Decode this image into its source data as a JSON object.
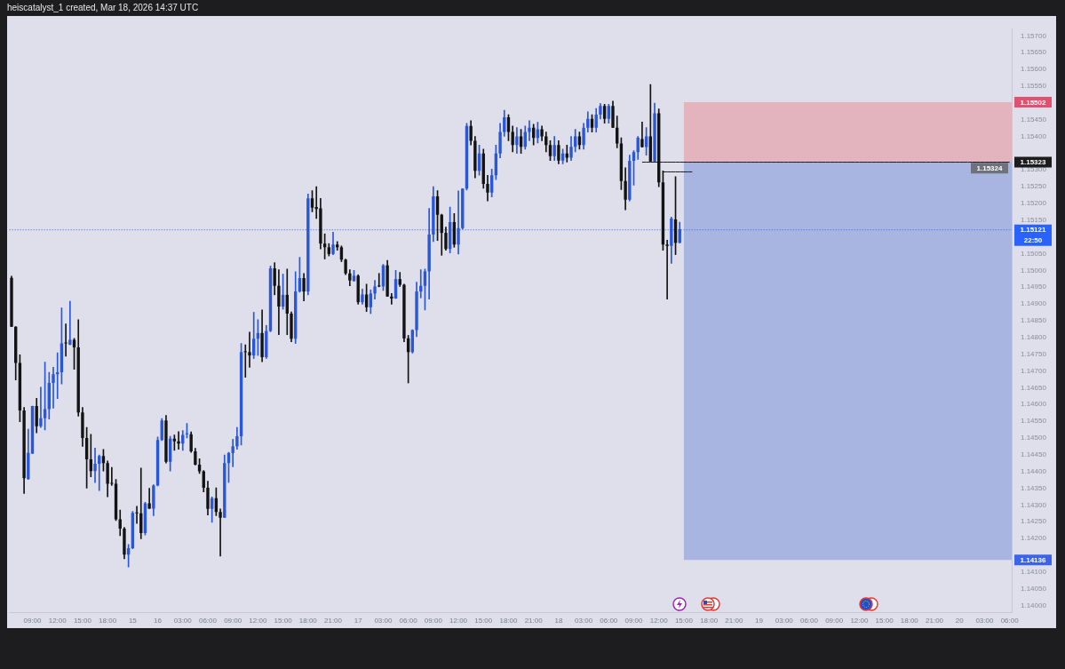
{
  "chart_data": {
    "type": "candlestick",
    "title": "heiscatalyst_1 created, Mar 18, 2026 14:37 UTC",
    "categories": [
      null,
      null,
      null,
      null,
      null,
      "09:00",
      null,
      null,
      null,
      null,
      null,
      "12:00",
      null,
      null,
      null,
      null,
      null,
      "15:00",
      null,
      null,
      null,
      null,
      null,
      "18:00",
      null,
      null,
      null,
      null,
      null,
      "15",
      null,
      null,
      null,
      null,
      null,
      "16",
      null,
      null,
      null,
      null,
      null,
      "03:00",
      null,
      null,
      null,
      null,
      null,
      "06:00",
      null,
      null,
      null,
      null,
      null,
      "09:00",
      null,
      null,
      null,
      null,
      null,
      "12:00",
      null,
      null,
      null,
      null,
      null,
      "15:00",
      null,
      null,
      null,
      null,
      null,
      "18:00",
      null,
      null,
      null,
      null,
      null,
      "21:00",
      null,
      null,
      null,
      null,
      null,
      "17",
      null,
      null,
      null,
      null,
      null,
      "03:00",
      null,
      null,
      null,
      null,
      null,
      "06:00",
      null,
      null,
      null,
      null,
      null,
      "09:00",
      null,
      null,
      null,
      null,
      null,
      "12:00",
      null,
      null,
      null,
      null,
      null,
      "15:00",
      null,
      null,
      null,
      null,
      null,
      "18:00",
      null,
      null,
      null,
      null,
      null,
      "21:00",
      null,
      null,
      null,
      null,
      null,
      "18",
      null,
      null,
      null,
      null,
      null,
      "03:00",
      null,
      null,
      null,
      null,
      null,
      "06:00",
      null,
      null,
      null,
      null,
      null,
      "09:00",
      null,
      null,
      null,
      null,
      null,
      "12:00",
      null,
      null,
      null,
      null,
      null,
      "15:00",
      null,
      null,
      null,
      null,
      null,
      "18:00",
      null,
      null,
      null,
      null,
      null,
      "21:00",
      null,
      null,
      null,
      null,
      null,
      "19",
      null,
      null,
      null,
      null,
      null,
      "03:00",
      null,
      null,
      null,
      null,
      null,
      "06:00",
      null,
      null,
      null,
      null,
      null,
      "09:00",
      null,
      null,
      null,
      null,
      null,
      "12:00",
      null,
      null,
      null,
      null,
      null,
      "15:00",
      null,
      null,
      null,
      null,
      null,
      "18:00",
      null,
      null,
      null,
      null,
      null,
      "21:00",
      null,
      null,
      null,
      null,
      null,
      "20",
      null,
      null,
      null,
      null,
      null,
      "03:00",
      null,
      null,
      null,
      null,
      null,
      "06:00"
    ],
    "ohlc": [
      [
        1.14978,
        1.14983,
        1.14832,
        1.14832
      ],
      [
        1.14832,
        1.14832,
        1.14673,
        1.14724
      ],
      [
        1.14724,
        1.14748,
        1.14548,
        1.14582
      ],
      [
        1.14582,
        1.14591,
        1.14334,
        1.1438
      ],
      [
        1.14377,
        1.14526,
        1.14376,
        1.14455
      ],
      [
        1.14453,
        1.14595,
        1.14453,
        1.14595
      ],
      [
        1.14595,
        1.14618,
        1.14515,
        1.14535
      ],
      [
        1.14535,
        1.14651,
        1.14531,
        1.14559
      ],
      [
        1.14559,
        1.14726,
        1.14524,
        1.14586
      ],
      [
        1.14586,
        1.14696,
        1.14556,
        1.14664
      ],
      [
        1.14664,
        1.14711,
        1.14589,
        1.1469
      ],
      [
        1.1469,
        1.14754,
        1.14617,
        1.14696
      ],
      [
        1.14696,
        1.14888,
        1.14661,
        1.14782
      ],
      [
        1.14782,
        1.1484,
        1.14744,
        1.14782
      ],
      [
        1.14778,
        1.14908,
        1.14778,
        1.14793
      ],
      [
        1.14793,
        1.14797,
        1.14705,
        1.1477
      ],
      [
        1.1477,
        1.14853,
        1.14565,
        1.14576
      ],
      [
        1.14576,
        1.14591,
        1.14475,
        1.145
      ],
      [
        1.145,
        1.14531,
        1.1435,
        1.14436
      ],
      [
        1.14436,
        1.14511,
        1.14384,
        1.14401
      ],
      [
        1.14401,
        1.1447,
        1.14367,
        1.14423
      ],
      [
        1.14423,
        1.14449,
        1.14343,
        1.14446
      ],
      [
        1.14446,
        1.14466,
        1.14401,
        1.14425
      ],
      [
        1.14425,
        1.14431,
        1.14324,
        1.14363
      ],
      [
        1.14363,
        1.14412,
        1.14358,
        1.14363
      ],
      [
        1.14363,
        1.14376,
        1.14253,
        1.14257
      ],
      [
        1.14257,
        1.14285,
        1.14208,
        1.14229
      ],
      [
        1.14229,
        1.14233,
        1.14139,
        1.14152
      ],
      [
        1.14152,
        1.14182,
        1.14115,
        1.14171
      ],
      [
        1.14171,
        1.14281,
        1.14169,
        1.14276
      ],
      [
        1.14275,
        1.14296,
        1.14245,
        1.14275
      ],
      [
        1.14275,
        1.1441,
        1.14199,
        1.14216
      ],
      [
        1.14216,
        1.14308,
        1.1421,
        1.14305
      ],
      [
        1.14305,
        1.1435,
        1.14289,
        1.14289
      ],
      [
        1.14289,
        1.1436,
        1.14268,
        1.14358
      ],
      [
        1.14358,
        1.14503,
        1.14357,
        1.14494
      ],
      [
        1.14494,
        1.14558,
        1.14492,
        1.14552
      ],
      [
        1.14552,
        1.14567,
        1.14425,
        1.14429
      ],
      [
        1.14429,
        1.14505,
        1.14401,
        1.14498
      ],
      [
        1.14498,
        1.14509,
        1.14463,
        1.1449
      ],
      [
        1.1449,
        1.14519,
        1.14466,
        1.14483
      ],
      [
        1.14483,
        1.14522,
        1.14463,
        1.14509
      ],
      [
        1.14511,
        1.14543,
        1.145,
        1.14511
      ],
      [
        1.14511,
        1.14518,
        1.14457,
        1.1446
      ],
      [
        1.1446,
        1.14469,
        1.14419,
        1.1442
      ],
      [
        1.1442,
        1.14438,
        1.14394,
        1.144
      ],
      [
        1.144,
        1.14403,
        1.14339,
        1.14351
      ],
      [
        1.14351,
        1.14371,
        1.1427,
        1.14288
      ],
      [
        1.14288,
        1.14324,
        1.14248,
        1.1432
      ],
      [
        1.1432,
        1.14351,
        1.14268,
        1.14279
      ],
      [
        1.14279,
        1.14288,
        1.14147,
        1.14262
      ],
      [
        1.14262,
        1.14449,
        1.14262,
        1.14425
      ],
      [
        1.14425,
        1.14457,
        1.14367,
        1.14455
      ],
      [
        1.14455,
        1.14496,
        1.14414,
        1.14475
      ],
      [
        1.14475,
        1.14531,
        1.14466,
        1.14505
      ],
      [
        1.14505,
        1.14782,
        1.14479,
        1.14756
      ],
      [
        1.14756,
        1.14778,
        1.14681,
        1.14756
      ],
      [
        1.14756,
        1.14816,
        1.14711,
        1.14746
      ],
      [
        1.14746,
        1.14875,
        1.14737,
        1.14796
      ],
      [
        1.14796,
        1.14853,
        1.14746,
        1.14813
      ],
      [
        1.14813,
        1.14882,
        1.14727,
        1.14741
      ],
      [
        1.14741,
        1.14836,
        1.14737,
        1.14819
      ],
      [
        1.14819,
        1.15013,
        1.14817,
        1.15006
      ],
      [
        1.15006,
        1.15023,
        1.14927,
        1.14954
      ],
      [
        1.14954,
        1.15002,
        1.14808,
        1.14892
      ],
      [
        1.14892,
        1.14989,
        1.14884,
        1.14927
      ],
      [
        1.14927,
        1.15004,
        1.14808,
        1.14871
      ],
      [
        1.14871,
        1.14876,
        1.14787,
        1.14796
      ],
      [
        1.14796,
        1.14996,
        1.14782,
        1.14937
      ],
      [
        1.14937,
        1.15039,
        1.14935,
        1.14977
      ],
      [
        1.14977,
        1.14991,
        1.14909,
        1.14937
      ],
      [
        1.14937,
        1.15228,
        1.14927,
        1.15215
      ],
      [
        1.15215,
        1.15238,
        1.15175,
        1.15187
      ],
      [
        1.15189,
        1.1525,
        1.15155,
        1.15183
      ],
      [
        1.15185,
        1.15215,
        1.15064,
        1.1508
      ],
      [
        1.1508,
        1.15109,
        1.15034,
        1.15069
      ],
      [
        1.15069,
        1.1508,
        1.15043,
        1.15049
      ],
      [
        1.15049,
        1.15114,
        1.15047,
        1.15077
      ],
      [
        1.15077,
        1.15086,
        1.1506,
        1.15069
      ],
      [
        1.15069,
        1.15073,
        1.15026,
        1.15032
      ],
      [
        1.15032,
        1.15034,
        1.14987,
        1.14991
      ],
      [
        1.14991,
        1.15002,
        1.14954,
        1.1497
      ],
      [
        1.14968,
        1.15,
        1.14968,
        1.14984
      ],
      [
        1.14984,
        1.14987,
        1.14899,
        1.14905
      ],
      [
        1.14905,
        1.14944,
        1.14899,
        1.14928
      ],
      [
        1.14928,
        1.14959,
        1.14877,
        1.1489
      ],
      [
        1.1489,
        1.14942,
        1.14871,
        1.14931
      ],
      [
        1.14931,
        1.1497,
        1.14914,
        1.14952
      ],
      [
        1.14952,
        1.14991,
        1.14951,
        1.14952
      ],
      [
        1.14952,
        1.15018,
        1.1494,
        1.15015
      ],
      [
        1.15015,
        1.1503,
        1.14922,
        1.14922
      ],
      [
        1.14922,
        1.14931,
        1.14899,
        1.14916
      ],
      [
        1.14916,
        1.15,
        1.14916,
        1.14974
      ],
      [
        1.14974,
        1.14994,
        1.14952,
        1.14957
      ],
      [
        1.14957,
        1.14959,
        1.14787,
        1.14797
      ],
      [
        1.14797,
        1.14806,
        1.14664,
        1.14756
      ],
      [
        1.14756,
        1.14823,
        1.14753,
        1.14822
      ],
      [
        1.14822,
        1.14965,
        1.14802,
        1.14937
      ],
      [
        1.14937,
        1.15002,
        1.14918,
        1.14954
      ],
      [
        1.14954,
        1.15004,
        1.14882,
        1.14997
      ],
      [
        1.14997,
        1.15185,
        1.14914,
        1.15107
      ],
      [
        1.15107,
        1.1525,
        1.15086,
        1.15221
      ],
      [
        1.15221,
        1.15238,
        1.15089,
        1.15166
      ],
      [
        1.15166,
        1.15168,
        1.15045,
        1.15112
      ],
      [
        1.15112,
        1.15129,
        1.1506,
        1.15064
      ],
      [
        1.15064,
        1.15189,
        1.15052,
        1.15144
      ],
      [
        1.15144,
        1.1517,
        1.15069,
        1.15077
      ],
      [
        1.15077,
        1.15237,
        1.15049,
        1.15126
      ],
      [
        1.15126,
        1.15244,
        1.15123,
        1.15244
      ],
      [
        1.15244,
        1.15439,
        1.1524,
        1.15431
      ],
      [
        1.15431,
        1.15447,
        1.15374,
        1.15387
      ],
      [
        1.15387,
        1.154,
        1.15276,
        1.15297
      ],
      [
        1.15297,
        1.15374,
        1.15284,
        1.15349
      ],
      [
        1.15349,
        1.15362,
        1.15245,
        1.15258
      ],
      [
        1.15258,
        1.15284,
        1.15207,
        1.15232
      ],
      [
        1.15232,
        1.15302,
        1.15219,
        1.15284
      ],
      [
        1.15284,
        1.15374,
        1.15271,
        1.15349
      ],
      [
        1.15349,
        1.15439,
        1.15336,
        1.15413
      ],
      [
        1.15413,
        1.15478,
        1.154,
        1.15457
      ],
      [
        1.15457,
        1.15465,
        1.15387,
        1.15413
      ],
      [
        1.15413,
        1.15431,
        1.15354,
        1.15374
      ],
      [
        1.15374,
        1.15426,
        1.15349,
        1.154
      ],
      [
        1.154,
        1.15421,
        1.15349,
        1.15369
      ],
      [
        1.15369,
        1.15431,
        1.15362,
        1.15413
      ],
      [
        1.15413,
        1.15447,
        1.15387,
        1.15426
      ],
      [
        1.15426,
        1.15436,
        1.15374,
        1.15395
      ],
      [
        1.15395,
        1.15442,
        1.1538,
        1.15421
      ],
      [
        1.15421,
        1.15431,
        1.15387,
        1.154
      ],
      [
        1.154,
        1.15413,
        1.15354,
        1.15374
      ],
      [
        1.15374,
        1.15387,
        1.15328,
        1.15341
      ],
      [
        1.15341,
        1.154,
        1.15328,
        1.15374
      ],
      [
        1.15374,
        1.15387,
        1.15318,
        1.15328
      ],
      [
        1.15328,
        1.15362,
        1.15318,
        1.15349
      ],
      [
        1.15349,
        1.15374,
        1.15323,
        1.15336
      ],
      [
        1.15336,
        1.154,
        1.15328,
        1.15369
      ],
      [
        1.15369,
        1.15421,
        1.15354,
        1.154
      ],
      [
        1.154,
        1.15413,
        1.15362,
        1.15374
      ],
      [
        1.15374,
        1.15439,
        1.15362,
        1.15426
      ],
      [
        1.15426,
        1.15473,
        1.15413,
        1.15452
      ],
      [
        1.15452,
        1.15465,
        1.15413,
        1.15426
      ],
      [
        1.15426,
        1.15483,
        1.15413,
        1.15465
      ],
      [
        1.15465,
        1.15498,
        1.15452,
        1.15491
      ],
      [
        1.15491,
        1.15496,
        1.15439,
        1.15452
      ],
      [
        1.15452,
        1.15496,
        1.15439,
        1.15491
      ],
      [
        1.15491,
        1.15505,
        1.15426,
        1.15426
      ],
      [
        1.15426,
        1.15461,
        1.15366,
        1.15379
      ],
      [
        1.15379,
        1.15396,
        1.15241,
        1.15267
      ],
      [
        1.15267,
        1.15306,
        1.15181,
        1.15211
      ],
      [
        1.15211,
        1.15344,
        1.15207,
        1.15327
      ],
      [
        1.15327,
        1.15357,
        1.15254,
        1.15353
      ],
      [
        1.15353,
        1.154,
        1.15331,
        1.15396
      ],
      [
        1.15392,
        1.15443,
        1.15368,
        1.15368
      ],
      [
        1.15368,
        1.15426,
        1.15344,
        1.154
      ],
      [
        1.154,
        1.15555,
        1.15325,
        1.15325
      ],
      [
        1.15325,
        1.15499,
        1.15325,
        1.15469
      ],
      [
        1.15469,
        1.15482,
        1.1525,
        1.15263
      ],
      [
        1.15263,
        1.15297,
        1.1506,
        1.15077
      ],
      [
        1.15077,
        1.1509,
        1.14914,
        1.15073
      ],
      [
        1.15073,
        1.15159,
        1.15021,
        1.15155
      ],
      [
        1.15152,
        1.1528,
        1.15047,
        1.15082
      ],
      [
        1.15082,
        1.15144,
        1.15082,
        1.15123
      ],
      null,
      null,
      null,
      null,
      null,
      null,
      null,
      null,
      null,
      null,
      null,
      null,
      null,
      null,
      null,
      null,
      null,
      null,
      null,
      null,
      null,
      null,
      null,
      null,
      null,
      null,
      null,
      null,
      null,
      null,
      null,
      null,
      null,
      null,
      null,
      null,
      null,
      null,
      null,
      null,
      null,
      null,
      null,
      null,
      null,
      null,
      null,
      null,
      null,
      null,
      null,
      null,
      null,
      null,
      null,
      null,
      null,
      null,
      null,
      null,
      null,
      null,
      null,
      null,
      null,
      null,
      null,
      null,
      null,
      null,
      null,
      null,
      null,
      null,
      null,
      null,
      null,
      null,
      null
    ],
    "colors": [
      "#131313",
      "#131313",
      "#131313",
      "#131313",
      "#2a56d8",
      "#2a56d8",
      "#131313",
      "#2a56d8",
      "#2a56d8",
      "#2a56d8",
      "#2a56d8",
      "#2a56d8",
      "#2a56d8",
      "#131313",
      "#2a56d8",
      "#131313",
      "#131313",
      "#131313",
      "#131313",
      "#131313",
      "#2a56d8",
      "#2a56d8",
      "#131313",
      "#131313",
      "#131313",
      "#131313",
      "#131313",
      "#131313",
      "#2a56d8",
      "#2a56d8",
      "#131313",
      "#131313",
      "#2a56d8",
      "#131313",
      "#2a56d8",
      "#2a56d8",
      "#2a56d8",
      "#131313",
      "#2a56d8",
      "#131313",
      "#131313",
      "#2a56d8",
      "#2a56d8",
      "#131313",
      "#131313",
      "#131313",
      "#131313",
      "#131313",
      "#2a56d8",
      "#131313",
      "#131313",
      "#2a56d8",
      "#2a56d8",
      "#2a56d8",
      "#2a56d8",
      "#2a56d8",
      "#131313",
      "#131313",
      "#2a56d8",
      "#2a56d8",
      "#131313",
      "#2a56d8",
      "#2a56d8",
      "#131313",
      "#131313",
      "#2a56d8",
      "#131313",
      "#131313",
      "#2a56d8",
      "#2a56d8",
      "#131313",
      "#2a56d8",
      "#131313",
      "#131313",
      "#131313",
      "#131313",
      "#131313",
      "#2a56d8",
      "#131313",
      "#131313",
      "#131313",
      "#131313",
      "#2a56d8",
      "#131313",
      "#2a56d8",
      "#131313",
      "#2a56d8",
      "#2a56d8",
      "#131313",
      "#2a56d8",
      "#131313",
      "#131313",
      "#2a56d8",
      "#131313",
      "#131313",
      "#131313",
      "#2a56d8",
      "#2a56d8",
      "#2a56d8",
      "#2a56d8",
      "#2a56d8",
      "#2a56d8",
      "#131313",
      "#131313",
      "#131313",
      "#2a56d8",
      "#131313",
      "#2a56d8",
      "#2a56d8",
      "#2a56d8",
      "#131313",
      "#131313",
      "#2a56d8",
      "#131313",
      "#131313",
      "#2a56d8",
      "#2a56d8",
      "#2a56d8",
      "#2a56d8",
      "#131313",
      "#131313",
      "#2a56d8",
      "#131313",
      "#2a56d8",
      "#2a56d8",
      "#131313",
      "#2a56d8",
      "#131313",
      "#131313",
      "#131313",
      "#2a56d8",
      "#131313",
      "#2a56d8",
      "#131313",
      "#2a56d8",
      "#2a56d8",
      "#131313",
      "#2a56d8",
      "#2a56d8",
      "#131313",
      "#2a56d8",
      "#2a56d8",
      "#131313",
      "#2a56d8",
      "#131313",
      "#131313",
      "#131313",
      "#131313",
      "#2a56d8",
      "#2a56d8",
      "#2a56d8",
      "#131313",
      "#2a56d8",
      "#131313",
      "#2a56d8",
      "#131313",
      "#131313",
      "#131313",
      "#2a56d8",
      "#131313",
      "#2a56d8",
      null,
      null,
      null,
      null,
      null,
      null,
      null,
      null,
      null,
      null,
      null,
      null,
      null,
      null,
      null,
      null,
      null,
      null,
      null,
      null,
      null,
      null,
      null,
      null,
      null,
      null,
      null,
      null,
      null,
      null,
      null,
      null,
      null,
      null,
      null,
      null,
      null,
      null,
      null,
      null,
      null,
      null,
      null,
      null,
      null,
      null,
      null,
      null,
      null,
      null,
      null,
      null,
      null,
      null,
      null,
      null,
      null,
      null,
      null,
      null,
      null,
      null,
      null,
      null,
      null,
      null,
      null,
      null,
      null,
      null,
      null,
      null,
      null,
      null,
      null,
      null,
      null,
      null,
      null
    ],
    "series": [
      {
        "type": "line",
        "color": "#1c1c1c",
        "values": [
          null,
          null,
          null,
          null,
          null,
          null,
          null,
          null,
          null,
          null,
          null,
          null,
          null,
          null,
          null,
          null,
          null,
          null,
          null,
          null,
          null,
          null,
          null,
          null,
          null,
          null,
          null,
          null,
          null,
          null,
          null,
          null,
          null,
          null,
          null,
          null,
          null,
          null,
          null,
          null,
          null,
          null,
          null,
          null,
          null,
          null,
          null,
          null,
          null,
          null,
          null,
          null,
          null,
          null,
          null,
          null,
          null,
          null,
          null,
          null,
          null,
          null,
          null,
          null,
          null,
          null,
          null,
          null,
          null,
          null,
          null,
          null,
          null,
          null,
          null,
          null,
          null,
          null,
          null,
          null,
          null,
          null,
          null,
          null,
          null,
          null,
          null,
          null,
          null,
          null,
          null,
          null,
          null,
          null,
          null,
          null,
          null,
          null,
          null,
          null,
          null,
          null,
          null,
          null,
          null,
          null,
          null,
          null,
          null,
          null,
          null,
          null,
          null,
          null,
          null,
          null,
          null,
          null,
          null,
          null,
          null,
          null,
          null,
          null,
          null,
          null,
          null,
          null,
          null,
          null,
          null,
          null,
          null,
          null,
          null,
          null,
          null,
          null,
          null,
          null,
          null,
          null,
          null,
          null,
          null,
          null,
          null,
          null,
          null,
          null,
          null,
          1.15323,
          1.15323,
          1.15323,
          1.15323,
          1.15323,
          1.15323,
          1.15323,
          1.15323,
          1.15323,
          1.15323,
          1.15323,
          1.15323,
          1.15323,
          1.15323,
          1.15323,
          1.15323,
          1.15323,
          1.15323,
          1.15323,
          1.15323,
          1.15323,
          1.15323,
          1.15323,
          1.15323,
          1.15323,
          1.15323,
          1.15323,
          1.15323,
          1.15323,
          1.15323,
          1.15323,
          1.15323,
          1.15323,
          1.15323,
          1.15323,
          1.15323,
          1.15323,
          1.15323,
          1.15323,
          1.15323,
          1.15323,
          1.15323,
          1.15323,
          1.15323,
          1.15323,
          1.15323,
          1.15323,
          1.15323,
          1.15323,
          1.15323,
          1.15323,
          1.15323,
          1.15323,
          1.15323,
          1.15323,
          1.15323,
          1.15323,
          1.15323,
          1.15323,
          1.15323,
          1.15323,
          1.15323,
          1.15323,
          1.15323,
          1.15323,
          1.15323,
          1.15323,
          1.15323,
          1.15323,
          1.15323,
          1.15323,
          1.15323,
          1.15323,
          1.15323,
          1.15323,
          1.15323,
          1.15323,
          1.15323,
          1.15323,
          1.15323,
          1.15323,
          1.15323,
          1.15323,
          1.15323,
          1.15323,
          1.15323,
          1.15323,
          1.15323,
          1.15323
        ]
      },
      {
        "type": "line",
        "color": "#1c1c1c",
        "values": [
          null,
          null,
          null,
          null,
          null,
          null,
          null,
          null,
          null,
          null,
          null,
          null,
          null,
          null,
          null,
          null,
          null,
          null,
          null,
          null,
          null,
          null,
          null,
          null,
          null,
          null,
          null,
          null,
          null,
          null,
          null,
          null,
          null,
          null,
          null,
          null,
          null,
          null,
          null,
          null,
          null,
          null,
          null,
          null,
          null,
          null,
          null,
          null,
          null,
          null,
          null,
          null,
          null,
          null,
          null,
          null,
          null,
          null,
          null,
          null,
          null,
          null,
          null,
          null,
          null,
          null,
          null,
          null,
          null,
          null,
          null,
          null,
          null,
          null,
          null,
          null,
          null,
          null,
          null,
          null,
          null,
          null,
          null,
          null,
          null,
          null,
          null,
          null,
          null,
          null,
          null,
          null,
          null,
          null,
          null,
          null,
          null,
          null,
          null,
          null,
          null,
          null,
          null,
          null,
          null,
          null,
          null,
          null,
          null,
          null,
          null,
          null,
          null,
          null,
          null,
          null,
          null,
          null,
          null,
          null,
          null,
          null,
          null,
          null,
          null,
          null,
          null,
          null,
          null,
          null,
          null,
          null,
          null,
          null,
          null,
          null,
          null,
          null,
          null,
          null,
          null,
          null,
          null,
          null,
          null,
          null,
          null,
          null,
          null,
          null,
          null,
          null,
          null,
          null,
          null,
          null,
          1.15294,
          1.15294,
          1.15294,
          1.15294,
          1.15294,
          1.15294,
          1.15294,
          1.15294,
          null,
          null,
          null,
          null,
          null,
          null,
          null,
          null,
          null,
          null,
          null,
          null,
          null,
          null,
          null,
          null,
          null,
          null,
          null,
          null,
          null,
          null,
          null,
          null,
          null,
          null,
          null,
          null,
          null,
          null,
          null,
          null,
          null,
          null,
          null,
          null,
          null,
          null,
          null,
          null,
          null,
          null,
          null,
          null,
          null,
          null,
          null,
          null,
          null,
          null,
          null,
          null,
          null,
          null,
          null,
          null,
          null,
          null,
          null,
          null,
          null,
          null,
          null,
          null,
          null,
          null,
          null,
          null,
          null,
          null,
          null,
          null,
          null,
          null,
          null,
          null
        ]
      }
    ],
    "ylim": [
      1.1398,
      1.1572
    ],
    "yticks": [
      {
        "value": 1.14,
        "label": "1.14000"
      },
      {
        "value": 1.1405,
        "label": "1.14050"
      },
      {
        "value": 1.141,
        "label": "1.14100"
      },
      {
        "value": 1.14136,
        "label": "1.14136"
      },
      {
        "value": 1.142,
        "label": "1.14200"
      },
      {
        "value": 1.1425,
        "label": "1.14250"
      },
      {
        "value": 1.143,
        "label": "1.14300"
      },
      {
        "value": 1.1435,
        "label": "1.14350"
      },
      {
        "value": 1.144,
        "label": "1.14400"
      },
      {
        "value": 1.1445,
        "label": "1.14450"
      },
      {
        "value": 1.145,
        "label": "1.14500"
      },
      {
        "value": 1.1455,
        "label": "1.14550"
      },
      {
        "value": 1.146,
        "label": "1.14600"
      },
      {
        "value": 1.1465,
        "label": "1.14650"
      },
      {
        "value": 1.147,
        "label": "1.14700"
      },
      {
        "value": 1.1475,
        "label": "1.14750"
      },
      {
        "value": 1.148,
        "label": "1.14800"
      },
      {
        "value": 1.1485,
        "label": "1.14850"
      },
      {
        "value": 1.149,
        "label": "1.14900"
      },
      {
        "value": 1.1495,
        "label": "1.14950"
      },
      {
        "value": 1.15,
        "label": "1.15000"
      },
      {
        "value": 1.1505,
        "label": "1.15050"
      },
      {
        "value": 1.1515,
        "label": "1.15150"
      },
      {
        "value": 1.152,
        "label": "1.15200"
      },
      {
        "value": 1.1525,
        "label": "1.15250"
      },
      {
        "value": 1.153,
        "label": "1.15300"
      },
      {
        "value": 1.15323,
        "label": "1.15323"
      },
      {
        "value": 1.154,
        "label": "1.15400"
      },
      {
        "value": 1.1545,
        "label": "1.15450"
      },
      {
        "value": 1.15502,
        "label": "1.15502"
      },
      {
        "value": 1.1555,
        "label": "1.15550"
      },
      {
        "value": 1.156,
        "label": "1.15600"
      },
      {
        "value": 1.1565,
        "label": "1.15650"
      },
      {
        "value": 1.157,
        "label": "1.15700"
      }
    ],
    "bands": [
      {
        "axis": "y",
        "from": 1.15324,
        "to": 1.15502,
        "color": "#e3b3be"
      },
      {
        "axis": "y",
        "from": 1.14136,
        "to": 1.15324,
        "color": "#a8b5e1",
        "label": "1.15324"
      }
    ],
    "ref_lines": [
      {
        "axis": "y",
        "value": 1.15121,
        "label": "1.15121\n22:50",
        "color": "#2962ff",
        "line_style": "dotted"
      }
    ]
  }
}
